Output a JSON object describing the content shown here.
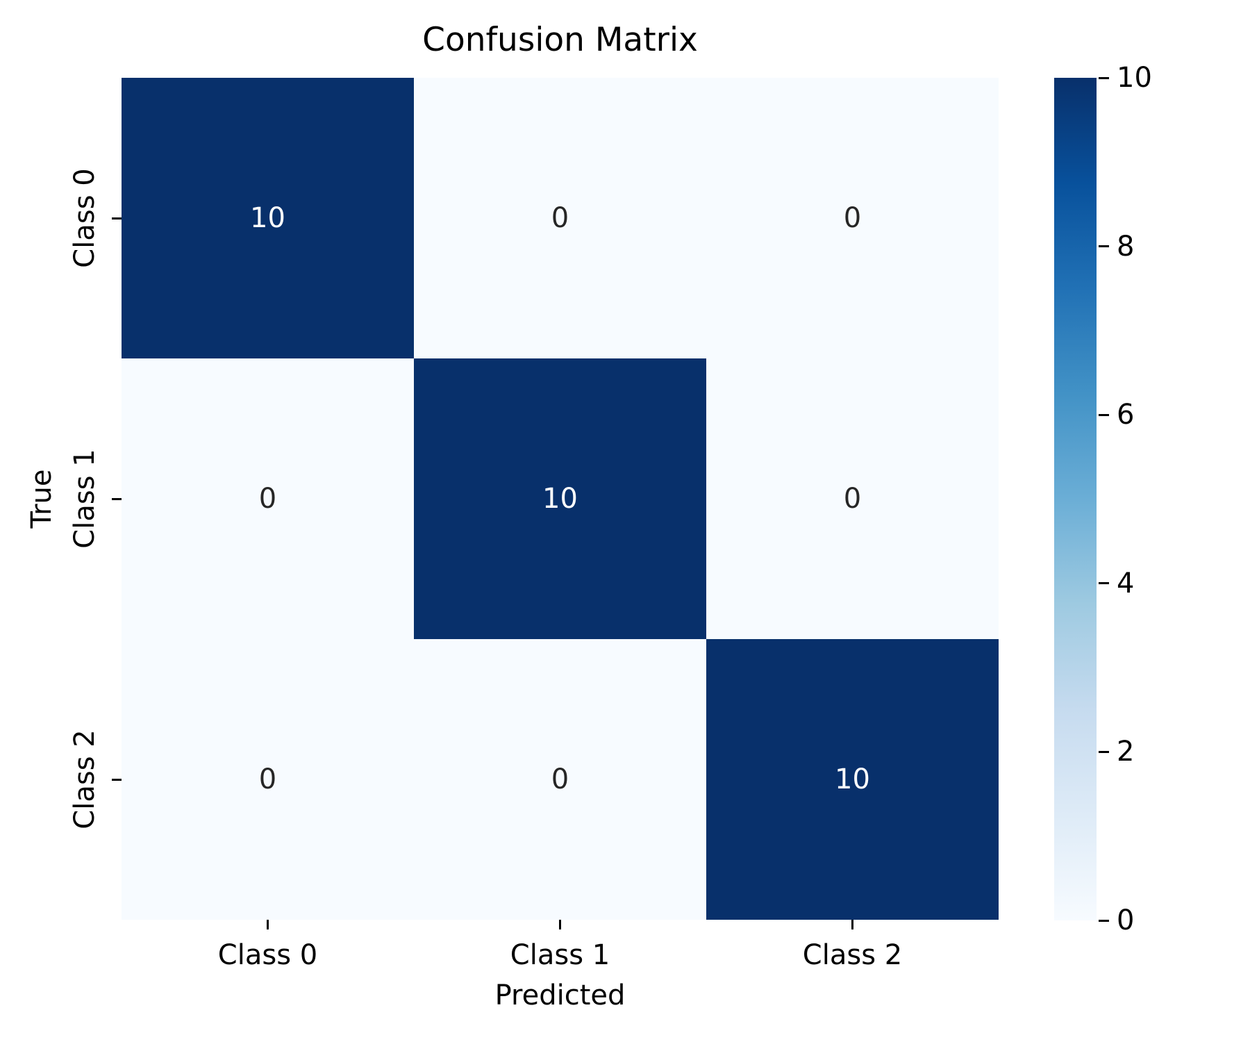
{
  "title": "Confusion Matrix",
  "chart_data": {
    "type": "heatmap",
    "title": "Confusion Matrix",
    "xlabel": "Predicted",
    "ylabel": "True",
    "x_categories": [
      "Class 0",
      "Class 1",
      "Class 2"
    ],
    "y_categories": [
      "Class 0",
      "Class 1",
      "Class 2"
    ],
    "matrix": [
      [
        10,
        0,
        0
      ],
      [
        0,
        10,
        0
      ],
      [
        0,
        0,
        10
      ]
    ],
    "vmin": 0,
    "vmax": 10,
    "colormap": "Blues",
    "annotated": true,
    "grid": false,
    "colorbar": {
      "position": "right",
      "ticks": [
        0,
        2,
        4,
        6,
        8,
        10
      ]
    }
  },
  "colors": {
    "background": "#ffffff",
    "cell_max": "#08306b",
    "cell_min": "#f7fbff",
    "annotation_light": "#ffffff",
    "annotation_dark": "#262626",
    "axis_text": "#000000",
    "cmap_stops": [
      "#f7fbff",
      "#deebf7",
      "#c6dbef",
      "#9ecae1",
      "#6baed6",
      "#4292c6",
      "#2171b5",
      "#08519c",
      "#08306b"
    ]
  }
}
